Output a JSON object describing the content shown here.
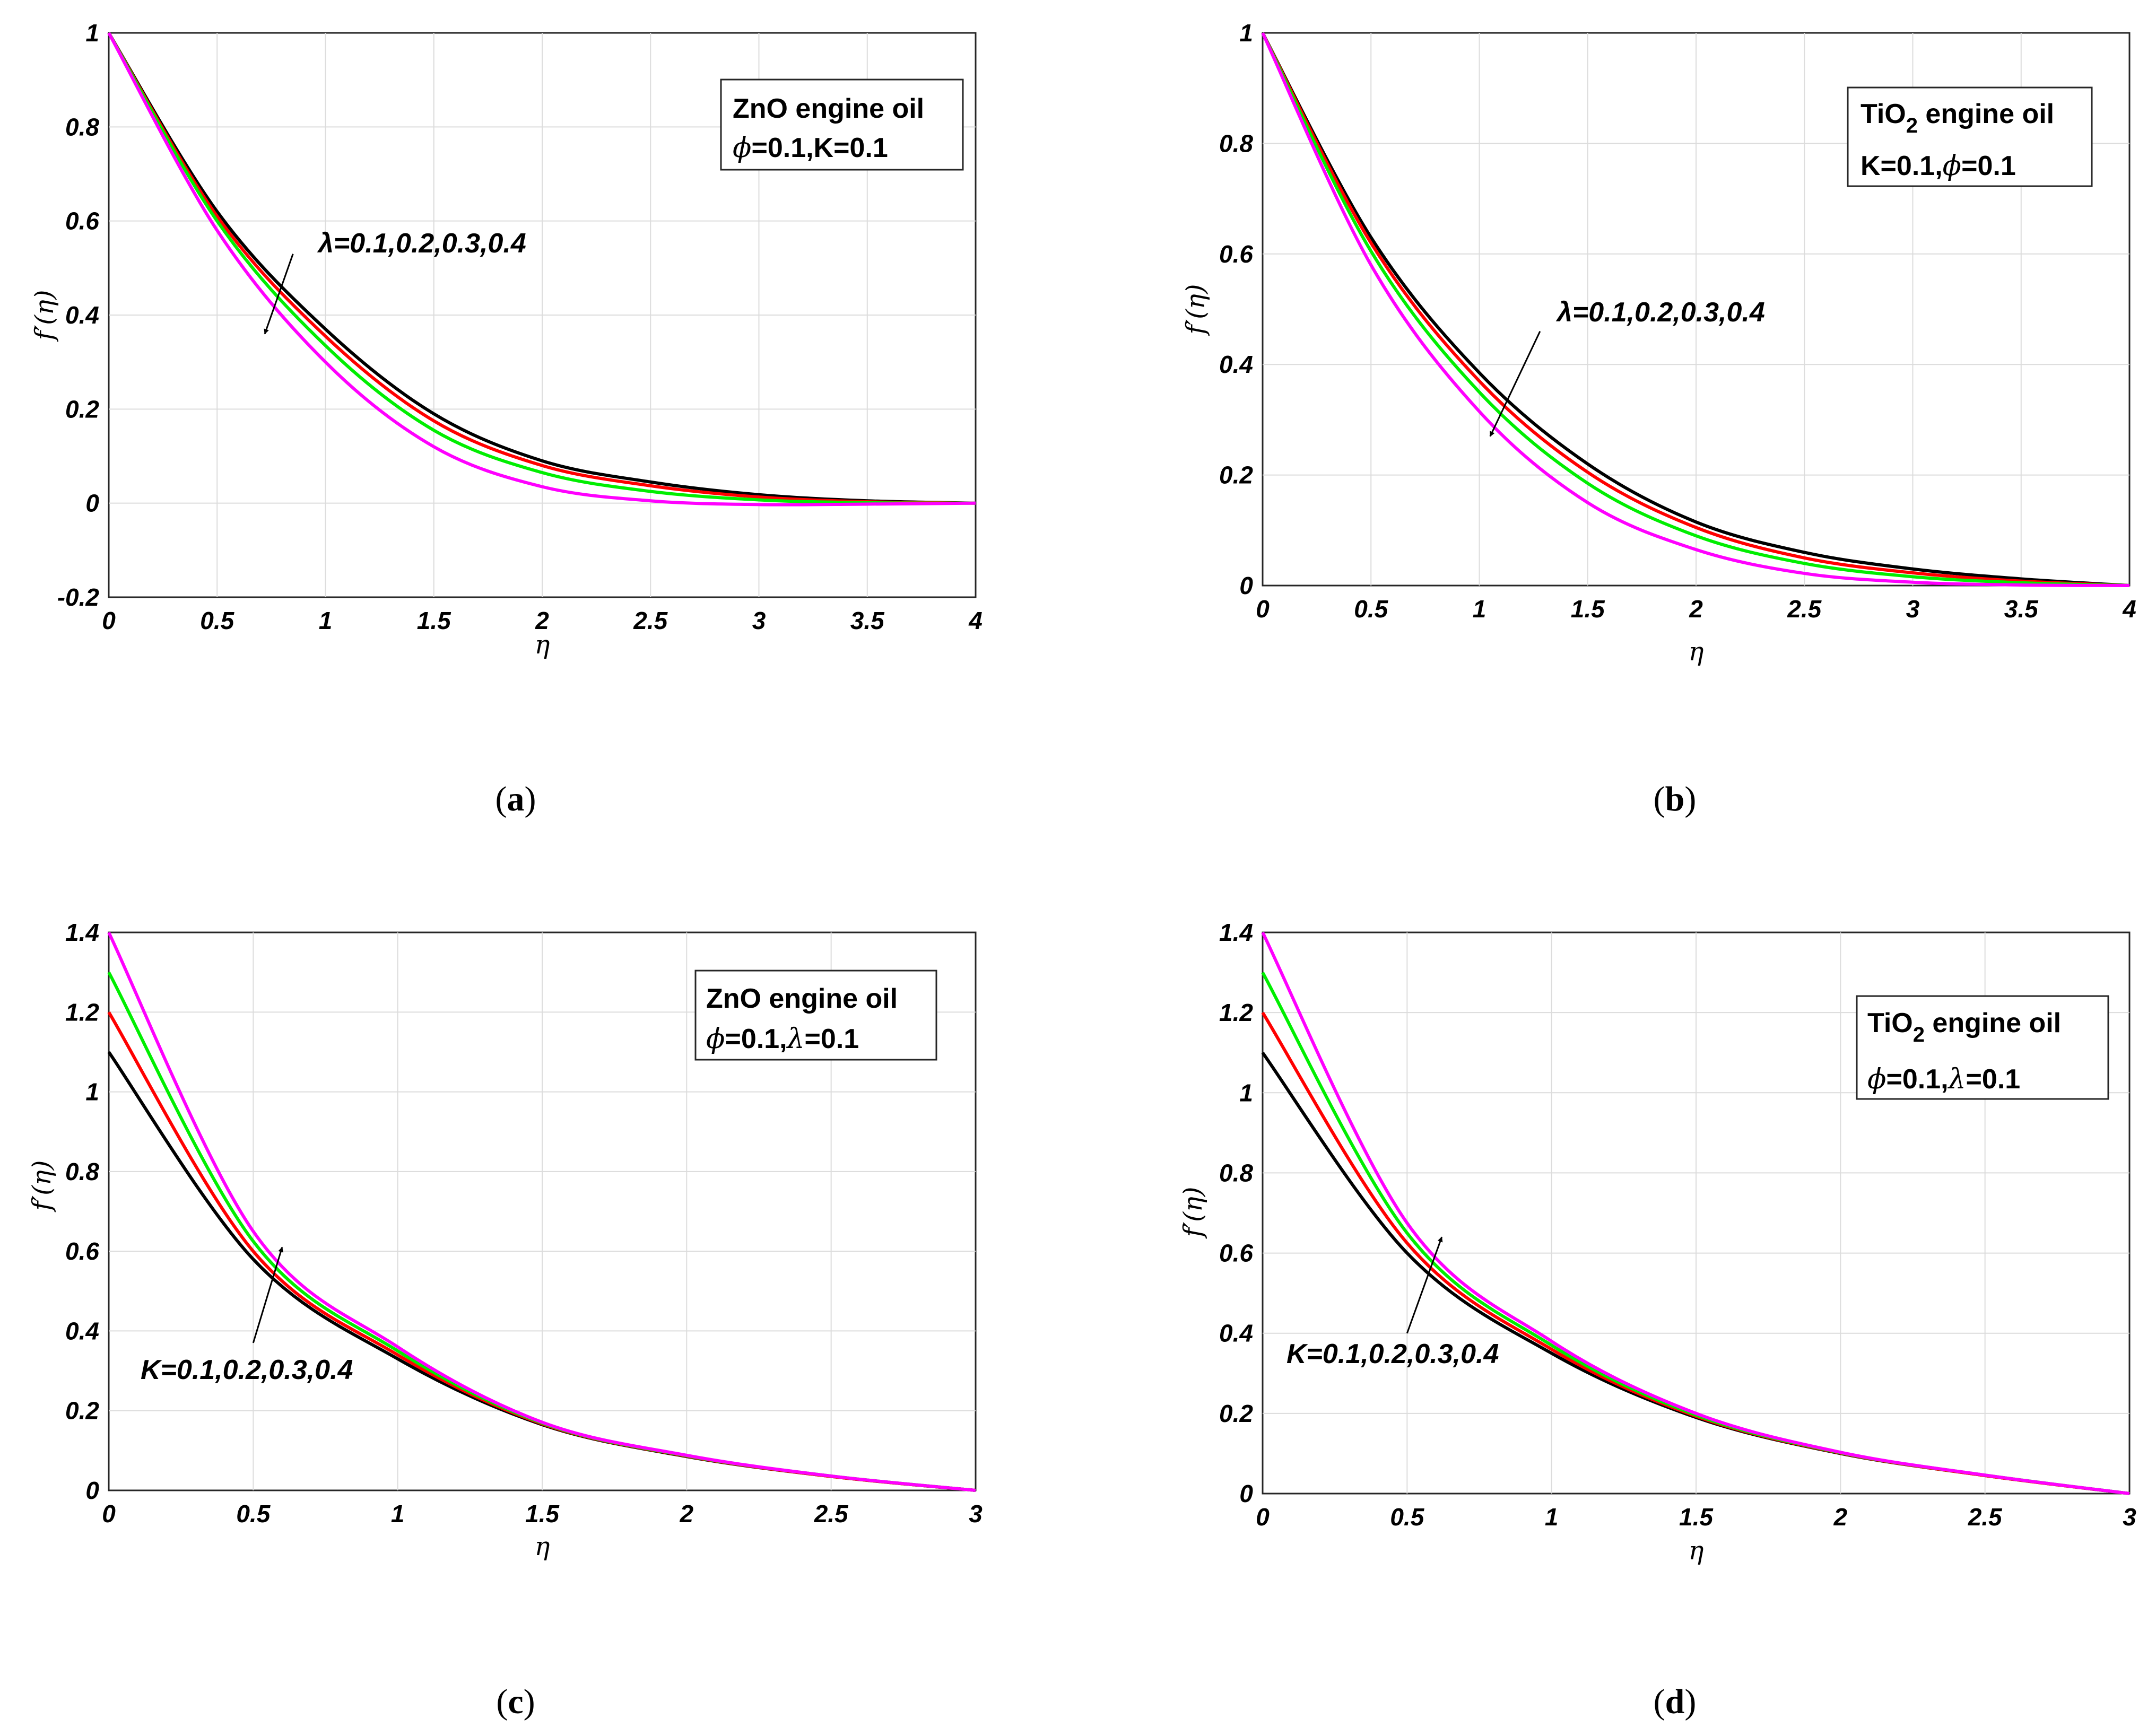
{
  "chart_data": [
    {
      "type": "line",
      "panel_label": "a",
      "xlabel": "η",
      "ylabel": "f′(η)",
      "xlim": [
        0,
        4
      ],
      "ylim": [
        -0.2,
        1
      ],
      "xticks": [
        "0",
        "0.5",
        "1",
        "1.5",
        "2",
        "2.5",
        "3",
        "3.5",
        "4"
      ],
      "yticks": [
        "-0.2",
        "0",
        "0.2",
        "0.4",
        "0.6",
        "0.8",
        "1"
      ],
      "legend": {
        "line1": "ZnO engine oil",
        "line2_sym": "ϕ",
        "line2_rest": "=0.1,K=0.1"
      },
      "annotation": "λ=0.1,0.2,0.3,0.4",
      "series": [
        {
          "name": "λ=0.1",
          "color": "#000000",
          "values": [
            [
              0,
              1
            ],
            [
              0.5,
              0.62
            ],
            [
              1,
              0.37
            ],
            [
              1.5,
              0.19
            ],
            [
              2,
              0.09
            ],
            [
              2.5,
              0.045
            ],
            [
              3,
              0.018
            ],
            [
              3.5,
              0.005
            ],
            [
              4,
              0
            ]
          ]
        },
        {
          "name": "λ=0.2",
          "color": "#ff0000",
          "values": [
            [
              0,
              1
            ],
            [
              0.5,
              0.61
            ],
            [
              1,
              0.355
            ],
            [
              1.5,
              0.175
            ],
            [
              2,
              0.08
            ],
            [
              2.5,
              0.037
            ],
            [
              3,
              0.013
            ],
            [
              3.5,
              0.003
            ],
            [
              4,
              0
            ]
          ]
        },
        {
          "name": "λ=0.3",
          "color": "#00ee00",
          "values": [
            [
              0,
              1
            ],
            [
              0.5,
              0.6
            ],
            [
              1,
              0.335
            ],
            [
              1.5,
              0.155
            ],
            [
              2,
              0.065
            ],
            [
              2.5,
              0.025
            ],
            [
              3,
              0.007
            ],
            [
              3.5,
              0.001
            ],
            [
              4,
              0
            ]
          ]
        },
        {
          "name": "λ=0.4",
          "color": "#ff00ff",
          "values": [
            [
              0,
              1
            ],
            [
              0.5,
              0.58
            ],
            [
              1,
              0.3
            ],
            [
              1.5,
              0.12
            ],
            [
              2,
              0.035
            ],
            [
              2.5,
              0.005
            ],
            [
              3,
              -0.003
            ],
            [
              3.5,
              -0.002
            ],
            [
              4,
              0
            ]
          ]
        }
      ],
      "arrow": {
        "from": [
          0.85,
          0.53
        ],
        "to": [
          0.72,
          0.36
        ]
      }
    },
    {
      "type": "line",
      "panel_label": "b",
      "xlabel": "η",
      "ylabel": "f′(η)",
      "xlim": [
        0,
        4
      ],
      "ylim": [
        0,
        1
      ],
      "xticks": [
        "0",
        "0.5",
        "1",
        "1.5",
        "2",
        "2.5",
        "3",
        "3.5",
        "4"
      ],
      "yticks": [
        "0",
        "0.2",
        "0.4",
        "0.6",
        "0.8",
        "1"
      ],
      "legend": {
        "line1_pre": "TiO",
        "line1_sub": "2",
        "line1_post": " engine oil",
        "line2_pre": "K=0.1,",
        "line2_sym": "ϕ",
        "line2_post": "=0.1"
      },
      "annotation": "λ=0.1,0.2,0.3,0.4",
      "series": [
        {
          "name": "λ=0.1",
          "color": "#000000",
          "values": [
            [
              0,
              1
            ],
            [
              0.5,
              0.63
            ],
            [
              1,
              0.385
            ],
            [
              1.5,
              0.22
            ],
            [
              2,
              0.115
            ],
            [
              2.5,
              0.06
            ],
            [
              3,
              0.03
            ],
            [
              3.5,
              0.012
            ],
            [
              4,
              0
            ]
          ]
        },
        {
          "name": "λ=0.2",
          "color": "#ff0000",
          "values": [
            [
              0,
              1
            ],
            [
              0.5,
              0.62
            ],
            [
              1,
              0.37
            ],
            [
              1.5,
              0.205
            ],
            [
              2,
              0.105
            ],
            [
              2.5,
              0.05
            ],
            [
              3,
              0.023
            ],
            [
              3.5,
              0.008
            ],
            [
              4,
              0
            ]
          ]
        },
        {
          "name": "λ=0.3",
          "color": "#00ee00",
          "values": [
            [
              0,
              1
            ],
            [
              0.5,
              0.605
            ],
            [
              1,
              0.35
            ],
            [
              1.5,
              0.185
            ],
            [
              2,
              0.09
            ],
            [
              2.5,
              0.04
            ],
            [
              3,
              0.016
            ],
            [
              3.5,
              0.005
            ],
            [
              4,
              0
            ]
          ]
        },
        {
          "name": "λ=0.4",
          "color": "#ff00ff",
          "values": [
            [
              0,
              1
            ],
            [
              0.5,
              0.58
            ],
            [
              1,
              0.315
            ],
            [
              1.5,
              0.15
            ],
            [
              2,
              0.065
            ],
            [
              2.5,
              0.022
            ],
            [
              3,
              0.006
            ],
            [
              3.5,
              0.001
            ],
            [
              4,
              0
            ]
          ]
        }
      ],
      "arrow": {
        "from": [
          1.28,
          0.46
        ],
        "to": [
          1.05,
          0.27
        ]
      }
    },
    {
      "type": "line",
      "panel_label": "c",
      "xlabel": "η",
      "ylabel": "f′(η)",
      "xlim": [
        0,
        3
      ],
      "ylim": [
        0,
        1.4
      ],
      "xticks": [
        "0",
        "0.5",
        "1",
        "1.5",
        "2",
        "2.5",
        "3"
      ],
      "yticks": [
        "0",
        "0.2",
        "0.4",
        "0.6",
        "0.8",
        "1",
        "1.2",
        "1.4"
      ],
      "legend": {
        "line1": "ZnO engine oil",
        "line2_sym": "ϕ",
        "line2_mid": "=0.1,",
        "line2_sym2": "λ",
        "line2_post": "=0.1"
      },
      "annotation": "K=0.1,0.2,0.3,0.4",
      "series": [
        {
          "name": "K=0.1",
          "color": "#000000",
          "values": [
            [
              0,
              1.1
            ],
            [
              0.5,
              0.58
            ],
            [
              1,
              0.33
            ],
            [
              1.5,
              0.165
            ],
            [
              2,
              0.085
            ],
            [
              2.5,
              0.035
            ],
            [
              3,
              0
            ]
          ]
        },
        {
          "name": "K=0.2",
          "color": "#ff0000",
          "values": [
            [
              0,
              1.2
            ],
            [
              0.5,
              0.6
            ],
            [
              1,
              0.34
            ],
            [
              1.5,
              0.167
            ],
            [
              2,
              0.086
            ],
            [
              2.5,
              0.035
            ],
            [
              3,
              0
            ]
          ]
        },
        {
          "name": "K=0.3",
          "color": "#00ee00",
          "values": [
            [
              0,
              1.3
            ],
            [
              0.5,
              0.625
            ],
            [
              1,
              0.35
            ],
            [
              1.5,
              0.169
            ],
            [
              2,
              0.087
            ],
            [
              2.5,
              0.036
            ],
            [
              3,
              0
            ]
          ]
        },
        {
          "name": "K=0.4",
          "color": "#ff00ff",
          "values": [
            [
              0,
              1.4
            ],
            [
              0.5,
              0.65
            ],
            [
              1,
              0.36
            ],
            [
              1.5,
              0.171
            ],
            [
              2,
              0.088
            ],
            [
              2.5,
              0.036
            ],
            [
              3,
              0
            ]
          ]
        }
      ],
      "arrow": {
        "from": [
          0.5,
          0.37
        ],
        "to": [
          0.6,
          0.61
        ]
      }
    },
    {
      "type": "line",
      "panel_label": "d",
      "xlabel": "η",
      "ylabel": "f′(η)",
      "xlim": [
        0,
        3
      ],
      "ylim": [
        0,
        1.4
      ],
      "xticks": [
        "0",
        "0.5",
        "1",
        "1.5",
        "2",
        "2.5",
        "3"
      ],
      "yticks": [
        "0",
        "0.2",
        "0.4",
        "0.6",
        "0.8",
        "1",
        "1.2",
        "1.4"
      ],
      "legend": {
        "line1_pre": "TiO",
        "line1_sub": "2",
        "line1_post": " engine oil",
        "line2_sym": "ϕ",
        "line2_mid": "=0.1,",
        "line2_sym2": "λ",
        "line2_post": "=0.1"
      },
      "annotation": "K=0.1,0.2,0.3,0.4",
      "series": [
        {
          "name": "K=0.1",
          "color": "#000000",
          "values": [
            [
              0,
              1.1
            ],
            [
              0.5,
              0.6
            ],
            [
              1,
              0.35
            ],
            [
              1.5,
              0.19
            ],
            [
              2,
              0.1
            ],
            [
              2.5,
              0.045
            ],
            [
              3,
              0
            ]
          ]
        },
        {
          "name": "K=0.2",
          "color": "#ff0000",
          "values": [
            [
              0,
              1.2
            ],
            [
              0.5,
              0.625
            ],
            [
              1,
              0.36
            ],
            [
              1.5,
              0.193
            ],
            [
              2,
              0.101
            ],
            [
              2.5,
              0.045
            ],
            [
              3,
              0
            ]
          ]
        },
        {
          "name": "K=0.3",
          "color": "#00ee00",
          "values": [
            [
              0,
              1.3
            ],
            [
              0.5,
              0.65
            ],
            [
              1,
              0.37
            ],
            [
              1.5,
              0.196
            ],
            [
              2,
              0.102
            ],
            [
              2.5,
              0.046
            ],
            [
              3,
              0
            ]
          ]
        },
        {
          "name": "K=0.4",
          "color": "#ff00ff",
          "values": [
            [
              0,
              1.4
            ],
            [
              0.5,
              0.675
            ],
            [
              1,
              0.38
            ],
            [
              1.5,
              0.2
            ],
            [
              2,
              0.103
            ],
            [
              2.5,
              0.046
            ],
            [
              3,
              0
            ]
          ]
        }
      ],
      "arrow": {
        "from": [
          0.5,
          0.4
        ],
        "to": [
          0.62,
          0.64
        ]
      }
    }
  ]
}
